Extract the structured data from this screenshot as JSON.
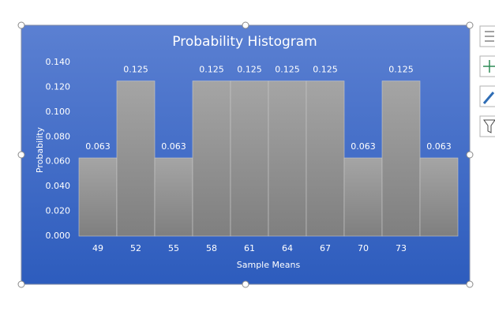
{
  "chart_data": {
    "type": "bar",
    "title": "Probability Histogram",
    "x_label": "Sample Means",
    "y_label": "Probability",
    "categories": [
      "49",
      "52",
      "55",
      "58",
      "61",
      "64",
      "67",
      "70",
      "73",
      null
    ],
    "values": [
      0.063,
      0.125,
      0.063,
      0.125,
      0.125,
      0.125,
      0.125,
      0.063,
      0.125,
      0.063
    ],
    "color": "#9a9a9a",
    "ylim": [
      0,
      0.14
    ],
    "yticks": [
      {
        "value": 0,
        "label": "0.000"
      },
      {
        "value": 0.02,
        "label": "0.020"
      },
      {
        "value": 0.04,
        "label": "0.040"
      },
      {
        "value": 0.06,
        "label": "0.060"
      },
      {
        "value": 0.08,
        "label": "0.080"
      },
      {
        "value": 0.1,
        "label": "0.100"
      },
      {
        "value": 0.12,
        "label": "0.120"
      },
      {
        "value": 0.14,
        "label": "0.140"
      }
    ],
    "grid": false,
    "data_labels": true
  }
}
